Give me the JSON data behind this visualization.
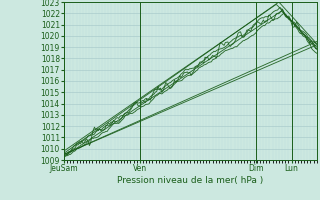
{
  "title": "",
  "xlabel": "Pression niveau de la mer( hPa )",
  "bg_color": "#cce8e0",
  "grid_major_color": "#aacccc",
  "grid_minor_color": "#bbdddd",
  "plot_color": "#1a5e1a",
  "ylim": [
    1009,
    1023
  ],
  "yticks": [
    1009,
    1010,
    1011,
    1012,
    1013,
    1014,
    1015,
    1016,
    1017,
    1018,
    1019,
    1020,
    1021,
    1022,
    1023
  ],
  "xtick_labels": [
    "JeuSam",
    "Ven",
    "Dim",
    "Lun"
  ],
  "xtick_pos": [
    0.0,
    0.3,
    0.76,
    0.9
  ],
  "n_points": 200
}
